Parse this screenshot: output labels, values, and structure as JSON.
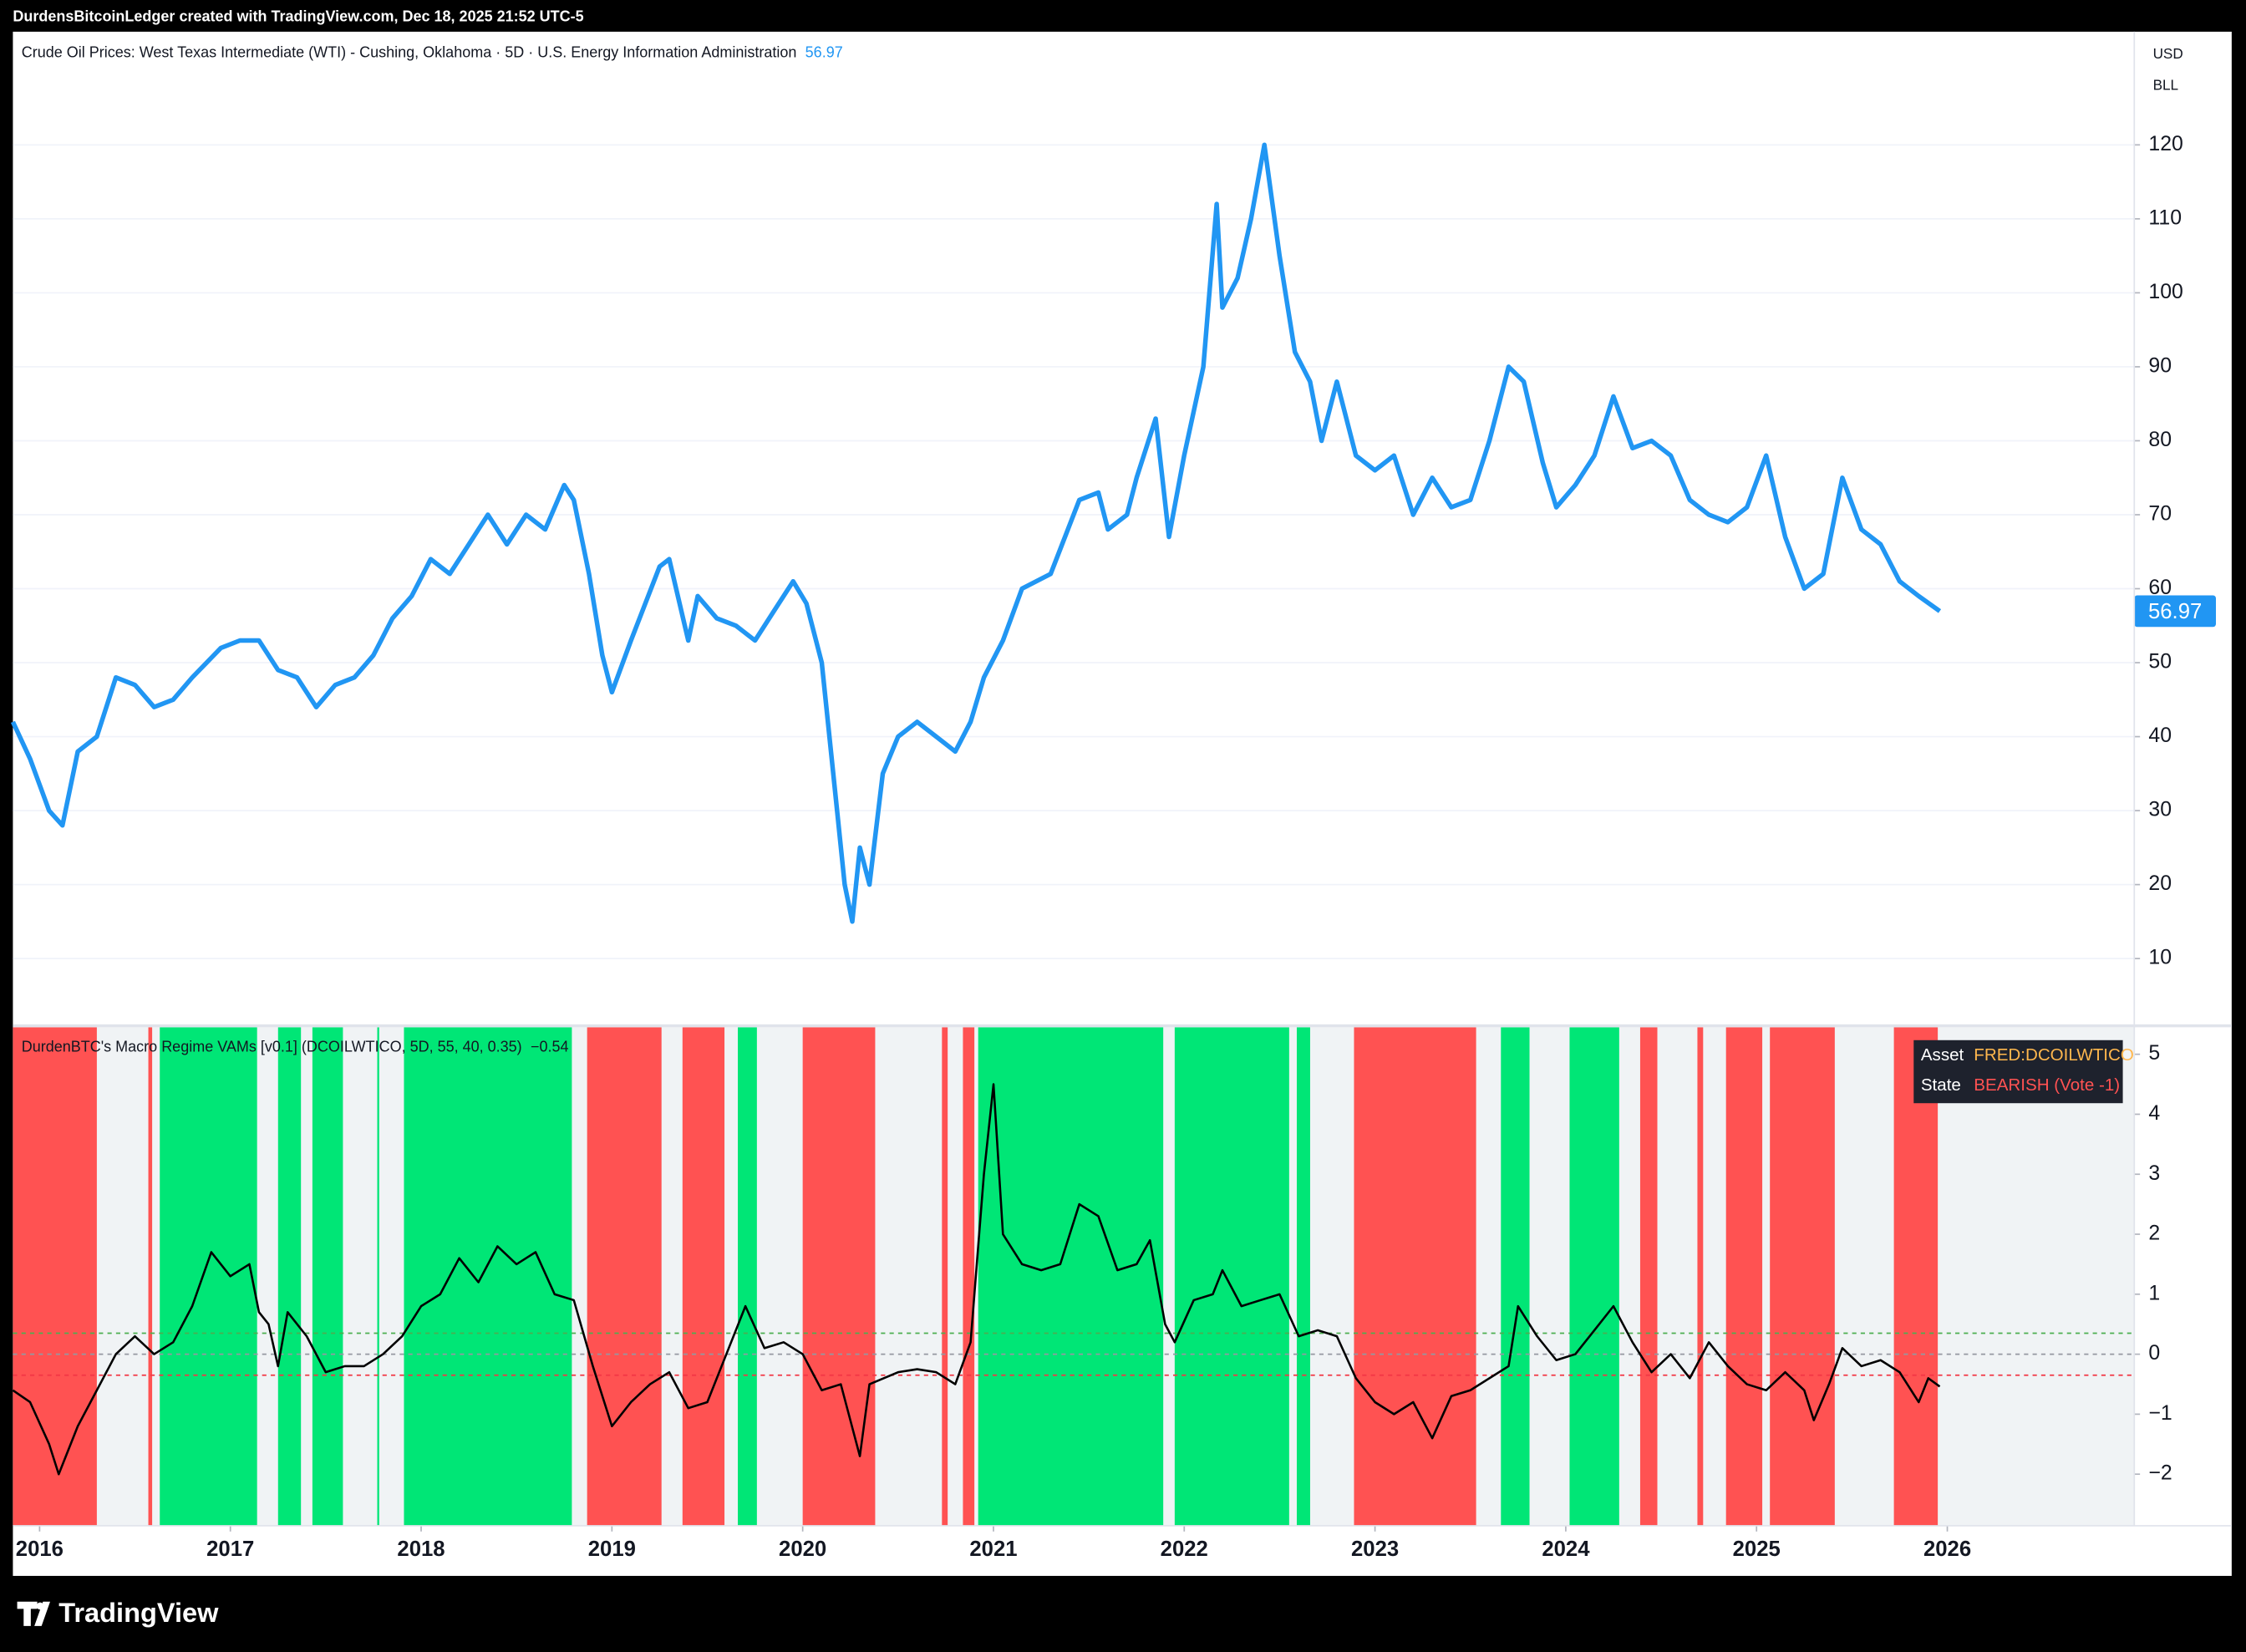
{
  "header": {
    "credit": "DurdensBitcoinLedger created with TradingView.com, Dec 18, 2025 21:52 UTC-5",
    "units": [
      "USD",
      "BLL"
    ]
  },
  "footer": {
    "brand": "TradingView"
  },
  "info_table": {
    "rows": [
      [
        "Asset",
        "FRED:DCOILWTICO"
      ],
      [
        "State",
        "BEARISH (Vote -1)"
      ]
    ]
  },
  "chart_data": [
    {
      "type": "line",
      "title": "Crude Oil Prices: West Texas Intermediate (WTI) - Cushing, Oklahoma · 5D · U.S. Energy Information Administration",
      "color": "#2196f3",
      "grid": true,
      "xlim": [
        2015.86,
        2026.98
      ],
      "ylim": [
        1.1,
        135.3
      ],
      "yticks": [
        10,
        20,
        30,
        40,
        50,
        60,
        70,
        80,
        90,
        100,
        110,
        120
      ],
      "x": [
        2015.86,
        2015.95,
        2016.05,
        2016.12,
        2016.2,
        2016.3,
        2016.4,
        2016.5,
        2016.6,
        2016.7,
        2016.8,
        2016.95,
        2017.05,
        2017.15,
        2017.25,
        2017.35,
        2017.45,
        2017.55,
        2017.65,
        2017.75,
        2017.85,
        2017.95,
        2018.05,
        2018.15,
        2018.25,
        2018.35,
        2018.45,
        2018.55,
        2018.65,
        2018.75,
        2018.8,
        2018.88,
        2018.95,
        2019.0,
        2019.1,
        2019.25,
        2019.3,
        2019.4,
        2019.45,
        2019.55,
        2019.65,
        2019.75,
        2019.85,
        2019.95,
        2020.02,
        2020.1,
        2020.18,
        2020.22,
        2020.26,
        2020.3,
        2020.35,
        2020.42,
        2020.5,
        2020.6,
        2020.7,
        2020.8,
        2020.88,
        2020.95,
        2021.05,
        2021.15,
        2021.3,
        2021.45,
        2021.55,
        2021.6,
        2021.7,
        2021.75,
        2021.85,
        2021.92,
        2022.0,
        2022.1,
        2022.17,
        2022.2,
        2022.28,
        2022.35,
        2022.42,
        2022.5,
        2022.58,
        2022.66,
        2022.72,
        2022.8,
        2022.9,
        2023.0,
        2023.1,
        2023.2,
        2023.3,
        2023.4,
        2023.5,
        2023.6,
        2023.7,
        2023.78,
        2023.88,
        2023.95,
        2024.05,
        2024.15,
        2024.25,
        2024.35,
        2024.45,
        2024.55,
        2024.65,
        2024.75,
        2024.85,
        2024.95,
        2025.05,
        2025.15,
        2025.25,
        2025.35,
        2025.45,
        2025.55,
        2025.65,
        2025.75,
        2025.85,
        2025.96
      ],
      "values": [
        42,
        37,
        30,
        28,
        38,
        40,
        48,
        47,
        44,
        45,
        48,
        52,
        53,
        53,
        49,
        48,
        44,
        47,
        48,
        51,
        56,
        59,
        64,
        62,
        66,
        70,
        66,
        70,
        68,
        74,
        72,
        62,
        51,
        46,
        53,
        63,
        64,
        53,
        59,
        56,
        55,
        53,
        57,
        61,
        58,
        50,
        30,
        20,
        15,
        25,
        20,
        35,
        40,
        42,
        40,
        38,
        42,
        48,
        53,
        60,
        62,
        72,
        73,
        68,
        70,
        75,
        83,
        67,
        78,
        90,
        112,
        98,
        102,
        110,
        120,
        105,
        92,
        88,
        80,
        88,
        78,
        76,
        78,
        70,
        75,
        71,
        72,
        80,
        90,
        88,
        77,
        71,
        74,
        78,
        86,
        79,
        80,
        78,
        72,
        70,
        69,
        71,
        78,
        67,
        60,
        62,
        75,
        68,
        66,
        61,
        59,
        56.97
      ]
    },
    {
      "type": "line",
      "title": "DurdenBTC's Macro Regime VAMs [v0.1] (DCOILWTICO, 5D, 55, 40, 0.35)",
      "color": "#000000",
      "background": "#f0f3f5",
      "xlim": [
        2015.86,
        2026.98
      ],
      "ylim": [
        -2.86,
        5.45
      ],
      "yticks": [
        {
          "value": -2,
          "label": "−2"
        },
        {
          "value": -1,
          "label": "−1"
        },
        0,
        1,
        2,
        3,
        4,
        5
      ],
      "xticks": [
        2016,
        2017,
        2018,
        2019,
        2020,
        2021,
        2022,
        2023,
        2024,
        2025,
        2026
      ],
      "thresholds": [
        {
          "value": 0.35,
          "color": "#4caf50"
        },
        {
          "value": 0,
          "color": "#9598a1"
        },
        {
          "value": -0.35,
          "color": "#f23645"
        }
      ],
      "bands": [
        {
          "start": 2015.86,
          "end": 2016.3,
          "color": "#ff5252"
        },
        {
          "start": 2016.57,
          "end": 2016.59,
          "color": "#ff5252"
        },
        {
          "start": 2016.63,
          "end": 2017.14,
          "color": "#00e676"
        },
        {
          "start": 2017.25,
          "end": 2017.37,
          "color": "#00e676"
        },
        {
          "start": 2017.43,
          "end": 2017.59,
          "color": "#00e676"
        },
        {
          "start": 2017.77,
          "end": 2017.78,
          "color": "#00e676"
        },
        {
          "start": 2017.91,
          "end": 2018.79,
          "color": "#00e676"
        },
        {
          "start": 2018.87,
          "end": 2019.26,
          "color": "#ff5252"
        },
        {
          "start": 2019.37,
          "end": 2019.59,
          "color": "#ff5252"
        },
        {
          "start": 2019.66,
          "end": 2019.76,
          "color": "#00e676"
        },
        {
          "start": 2020.0,
          "end": 2020.38,
          "color": "#ff5252"
        },
        {
          "start": 2020.73,
          "end": 2020.76,
          "color": "#ff5252"
        },
        {
          "start": 2020.84,
          "end": 2020.9,
          "color": "#ff5252"
        },
        {
          "start": 2020.92,
          "end": 2021.89,
          "color": "#00e676"
        },
        {
          "start": 2021.95,
          "end": 2022.55,
          "color": "#00e676"
        },
        {
          "start": 2022.59,
          "end": 2022.66,
          "color": "#00e676"
        },
        {
          "start": 2022.89,
          "end": 2023.53,
          "color": "#ff5252"
        },
        {
          "start": 2023.66,
          "end": 2023.81,
          "color": "#00e676"
        },
        {
          "start": 2024.02,
          "end": 2024.28,
          "color": "#00e676"
        },
        {
          "start": 2024.39,
          "end": 2024.48,
          "color": "#ff5252"
        },
        {
          "start": 2024.69,
          "end": 2024.72,
          "color": "#ff5252"
        },
        {
          "start": 2024.84,
          "end": 2025.03,
          "color": "#ff5252"
        },
        {
          "start": 2025.07,
          "end": 2025.41,
          "color": "#ff5252"
        },
        {
          "start": 2025.72,
          "end": 2025.95,
          "color": "#ff5252"
        }
      ],
      "x": [
        2015.86,
        2015.95,
        2016.05,
        2016.1,
        2016.2,
        2016.3,
        2016.4,
        2016.5,
        2016.6,
        2016.7,
        2016.8,
        2016.9,
        2017.0,
        2017.1,
        2017.15,
        2017.2,
        2017.25,
        2017.3,
        2017.4,
        2017.5,
        2017.6,
        2017.7,
        2017.8,
        2017.9,
        2018.0,
        2018.1,
        2018.2,
        2018.3,
        2018.4,
        2018.5,
        2018.6,
        2018.7,
        2018.8,
        2018.9,
        2019.0,
        2019.1,
        2019.2,
        2019.3,
        2019.4,
        2019.5,
        2019.6,
        2019.7,
        2019.8,
        2019.9,
        2020.0,
        2020.1,
        2020.2,
        2020.3,
        2020.35,
        2020.5,
        2020.6,
        2020.7,
        2020.8,
        2020.88,
        2020.95,
        2021.0,
        2021.05,
        2021.15,
        2021.25,
        2021.35,
        2021.45,
        2021.55,
        2021.65,
        2021.75,
        2021.82,
        2021.9,
        2021.95,
        2022.05,
        2022.15,
        2022.2,
        2022.3,
        2022.4,
        2022.5,
        2022.6,
        2022.7,
        2022.8,
        2022.9,
        2023.0,
        2023.1,
        2023.2,
        2023.3,
        2023.4,
        2023.5,
        2023.6,
        2023.7,
        2023.75,
        2023.85,
        2023.95,
        2024.05,
        2024.15,
        2024.25,
        2024.35,
        2024.45,
        2024.55,
        2024.65,
        2024.75,
        2024.85,
        2024.95,
        2025.05,
        2025.15,
        2025.25,
        2025.3,
        2025.38,
        2025.45,
        2025.55,
        2025.65,
        2025.75,
        2025.85,
        2025.9,
        2025.96
      ],
      "values": [
        -0.6,
        -0.8,
        -1.5,
        -2.0,
        -1.2,
        -0.6,
        0.0,
        0.3,
        0.0,
        0.2,
        0.8,
        1.7,
        1.3,
        1.5,
        0.7,
        0.5,
        -0.2,
        0.7,
        0.3,
        -0.3,
        -0.2,
        -0.2,
        0.0,
        0.3,
        0.8,
        1.0,
        1.6,
        1.2,
        1.8,
        1.5,
        1.7,
        1.0,
        0.9,
        -0.2,
        -1.2,
        -0.8,
        -0.5,
        -0.3,
        -0.9,
        -0.8,
        0.0,
        0.8,
        0.1,
        0.2,
        0.0,
        -0.6,
        -0.5,
        -1.7,
        -0.5,
        -0.3,
        -0.25,
        -0.3,
        -0.5,
        0.2,
        3.0,
        4.5,
        2.0,
        1.5,
        1.4,
        1.5,
        2.5,
        2.3,
        1.4,
        1.5,
        1.9,
        0.5,
        0.2,
        0.9,
        1.0,
        1.4,
        0.8,
        0.9,
        1.0,
        0.3,
        0.4,
        0.3,
        -0.4,
        -0.8,
        -1.0,
        -0.8,
        -1.4,
        -0.7,
        -0.6,
        -0.4,
        -0.2,
        0.8,
        0.3,
        -0.1,
        0.0,
        0.4,
        0.8,
        0.2,
        -0.3,
        0.0,
        -0.4,
        0.2,
        -0.2,
        -0.5,
        -0.6,
        -0.3,
        -0.6,
        -1.1,
        -0.5,
        0.1,
        -0.2,
        -0.1,
        -0.3,
        -0.8,
        -0.4,
        -0.54
      ],
      "value_labels": [
        null,
        null,
        null,
        null,
        null,
        null,
        null,
        null,
        null,
        null,
        null,
        null,
        null,
        null,
        null,
        null,
        null,
        null,
        null,
        null,
        null,
        null,
        null,
        null,
        null,
        null,
        null,
        null,
        null,
        null,
        null,
        null,
        null,
        null,
        null,
        null,
        null,
        null,
        null,
        null,
        null,
        null,
        null,
        null,
        null,
        null,
        null,
        null,
        null,
        null,
        null,
        null,
        null,
        null,
        null,
        null,
        null,
        null,
        null,
        null,
        null,
        null,
        null,
        null,
        null,
        null,
        null,
        null,
        null,
        null,
        null,
        null,
        null,
        null,
        null,
        null,
        null,
        null,
        null,
        null,
        null,
        null,
        null,
        null,
        null,
        null,
        null,
        null,
        null,
        null,
        null,
        null,
        null,
        null,
        null,
        null,
        null,
        null,
        null,
        null,
        null,
        null,
        null,
        null,
        null,
        null,
        null,
        null,
        null,
        "−0.54"
      ]
    }
  ]
}
